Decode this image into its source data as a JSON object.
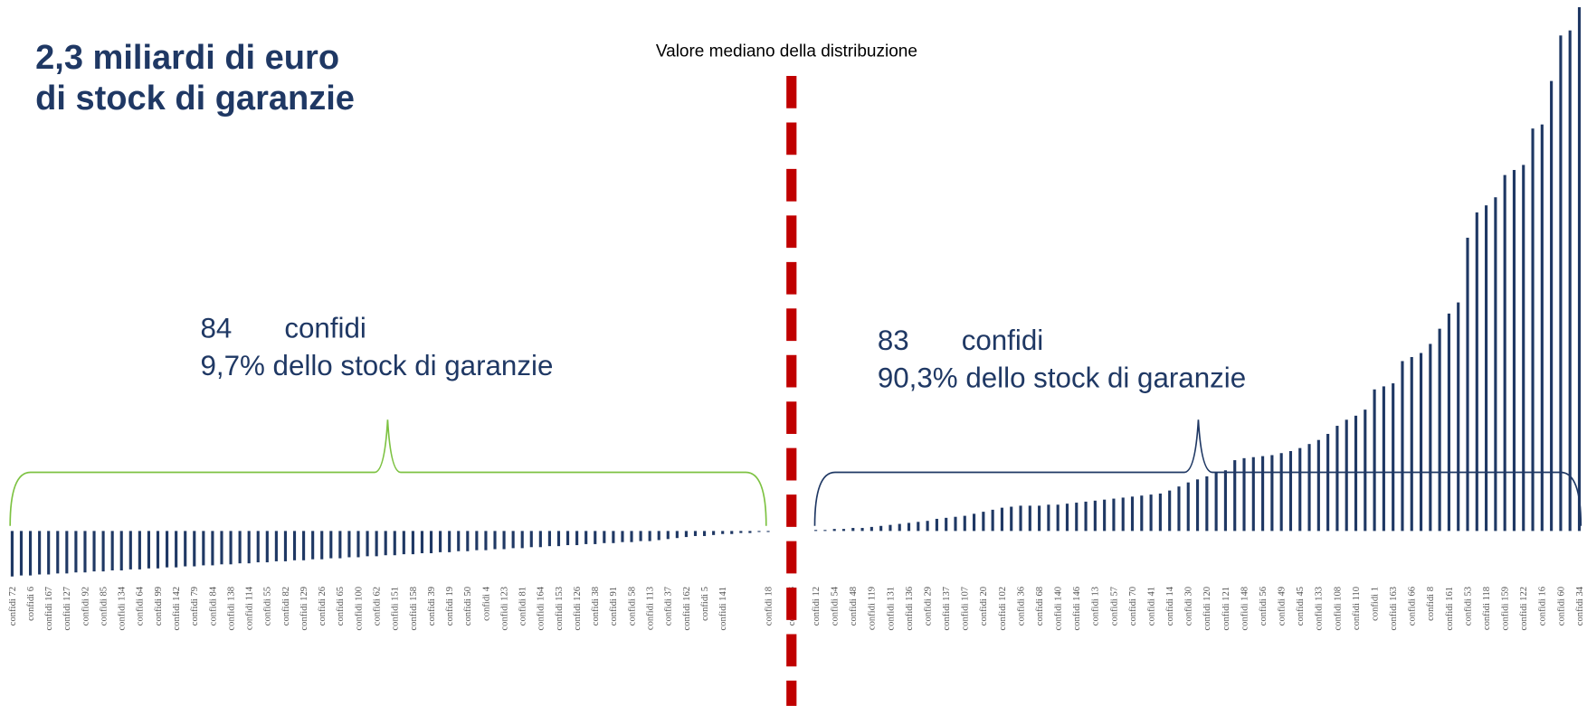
{
  "chart_data": {
    "type": "bar",
    "color": "#1f3864",
    "title": [
      "2,3 miliardi di euro",
      "di stock di garanzie"
    ],
    "median_label": "Valore mediano della distribuzione",
    "left_annotation": {
      "count": "84",
      "label": "confidi",
      "share": "9,7% dello stock di garanzie",
      "color": "#7dc242"
    },
    "right_annotation": {
      "count": "83",
      "label": "confidi",
      "share": "90,3% dello stock di garanzie",
      "color": "#1f3864"
    },
    "median_color": "#c00000",
    "categories": [
      "confidi 72",
      null,
      "confidi 6",
      null,
      "confidi 167",
      null,
      "confidi 127",
      null,
      "confidi 92",
      null,
      "confidi 85",
      null,
      "confidi 134",
      null,
      "confidi 64",
      null,
      "confidi 99",
      null,
      "confidi 142",
      null,
      "confidi 79",
      null,
      "confidi 84",
      null,
      "confidi 138",
      null,
      "confidi 114",
      null,
      "confidi 55",
      null,
      "confidi 82",
      null,
      "confidi 129",
      null,
      "confidi 26",
      null,
      "confidi 65",
      null,
      "confidi 100",
      null,
      "confidi 62",
      null,
      "confidi 151",
      null,
      "confidi 158",
      null,
      "confidi 39",
      null,
      "confidi 19",
      null,
      "confidi 50",
      null,
      "confidi 4",
      null,
      "confidi 123",
      null,
      "confidi 81",
      null,
      "confidi 164",
      null,
      "confidi 153",
      null,
      "confidi 126",
      null,
      "confidi 38",
      null,
      "confidi 91",
      null,
      "confidi 58",
      null,
      "confidi 113",
      null,
      "confidi 37",
      null,
      "confidi 162",
      null,
      "confidi 5",
      null,
      "confidi 141",
      null,
      null,
      null,
      null,
      "confidi 18",
      "confidi 23",
      "confidi 12",
      null,
      "confidi 54",
      null,
      "confidi 48",
      null,
      "confidi 119",
      null,
      "confidi 131",
      null,
      "confidi 136",
      null,
      "confidi 29",
      null,
      "confidi 137",
      null,
      "confidi 107",
      null,
      "confidi 20",
      null,
      "confidi 102",
      null,
      "confidi 36",
      null,
      "confidi 68",
      null,
      "confidi 140",
      null,
      "confidi 146",
      null,
      "confidi 13",
      null,
      "confidi 57",
      null,
      "confidi 70",
      null,
      "confidi 41",
      null,
      "confidi 14",
      null,
      "confidi 30",
      null,
      "confidi 120",
      null,
      "confidi 121",
      null,
      "confidi 148",
      null,
      "confidi 56",
      null,
      "confidi 49",
      null,
      "confidi 45",
      null,
      "confidi 133",
      null,
      "confidi 108",
      null,
      "confidi 110",
      null,
      "confidi 1",
      null,
      "confidi 163",
      null,
      "confidi 66",
      null,
      "confidi 8",
      null,
      "confidi 161",
      null,
      "confidi 53",
      null,
      "confidi 118",
      null,
      "confidi 159",
      null,
      "confidi 122",
      null,
      "confidi 16",
      null,
      "confidi 60",
      null,
      "confidi 34"
    ],
    "values": [
      -45,
      -44,
      -44,
      -43,
      -43,
      -42,
      -42,
      -41,
      -41,
      -40,
      -40,
      -39,
      -39,
      -38,
      -38,
      -37,
      -37,
      -36,
      -36,
      -35,
      -35,
      -34,
      -34,
      -33,
      -33,
      -32,
      -32,
      -31,
      -31,
      -30,
      -30,
      -29,
      -29,
      -28,
      -28,
      -27,
      -27,
      -26,
      -26,
      -25,
      -25,
      -24,
      -24,
      -23,
      -23,
      -22,
      -22,
      -21,
      -21,
      -20,
      -20,
      -19,
      -19,
      -18,
      -18,
      -17,
      -17,
      -16,
      -16,
      -15,
      -15,
      -14,
      -14,
      -13,
      -13,
      -12,
      -12,
      -11,
      -11,
      -10,
      -10,
      -9,
      -8,
      -7,
      -6,
      -5,
      -5,
      -4,
      -3,
      -3,
      -2,
      -2,
      -1,
      -1,
      null,
      1,
      1,
      2,
      2,
      3,
      3,
      4,
      5,
      6,
      7,
      8,
      9,
      10,
      12,
      13,
      14,
      15,
      17,
      19,
      21,
      23,
      24,
      25,
      25,
      25,
      26,
      26,
      27,
      28,
      29,
      30,
      31,
      32,
      33,
      34,
      35,
      36,
      37,
      40,
      44,
      48,
      51,
      54,
      58,
      60,
      70,
      72,
      73,
      74,
      75,
      77,
      79,
      82,
      86,
      90,
      96,
      104,
      110,
      114,
      120,
      140,
      143,
      146,
      168,
      172,
      176,
      185,
      200,
      215,
      226,
      290,
      315,
      322,
      330,
      352,
      357,
      362,
      398,
      402,
      445,
      490,
      495,
      518
    ]
  }
}
